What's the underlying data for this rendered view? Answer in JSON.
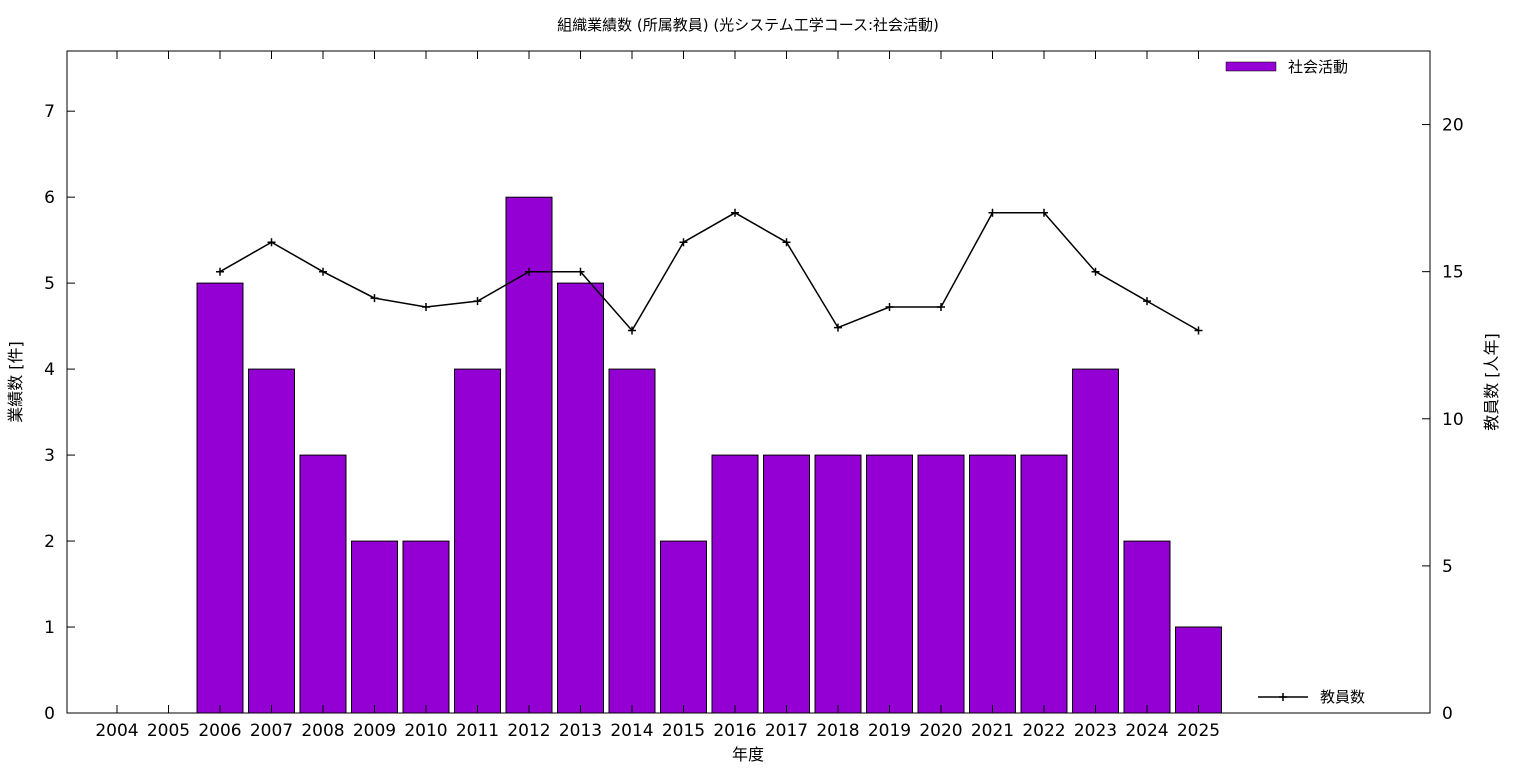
{
  "chart_data": {
    "type": "bar",
    "title": "組織業績数 (所属教員) (光システム工学コース:社会活動)",
    "xlabel": "年度",
    "ylabel": "業績数 [件]",
    "y2label": "教員数 [人年]",
    "categories": [
      "2004",
      "2005",
      "2006",
      "2007",
      "2008",
      "2009",
      "2010",
      "2011",
      "2012",
      "2013",
      "2014",
      "2015",
      "2016",
      "2017",
      "2018",
      "2019",
      "2020",
      "2021",
      "2022",
      "2023",
      "2024",
      "2025"
    ],
    "series": [
      {
        "name": "社会活動",
        "type": "bar",
        "axis": "left",
        "color": "#9400d3",
        "values": [
          null,
          null,
          5,
          4,
          3,
          2,
          2,
          4,
          6,
          5,
          4,
          2,
          3,
          3,
          3,
          3,
          3,
          3,
          3,
          4,
          2,
          1
        ]
      },
      {
        "name": "教員数",
        "type": "line",
        "axis": "right",
        "color": "#000000",
        "values": [
          null,
          null,
          15,
          16,
          15,
          14.1,
          13.8,
          14,
          15,
          15,
          13,
          16,
          17,
          16,
          13.1,
          13.8,
          13.8,
          17,
          17,
          15,
          14,
          13
        ]
      }
    ],
    "ylim": [
      0,
      7.7
    ],
    "yticks": [
      0,
      1,
      2,
      3,
      4,
      5,
      6,
      7
    ],
    "y2lim": [
      0,
      22.5
    ],
    "y2ticks": [
      0,
      5,
      10,
      15,
      20
    ],
    "grid": false,
    "legend_bar_position": "top-right",
    "legend_line_position": "bottom-right"
  }
}
